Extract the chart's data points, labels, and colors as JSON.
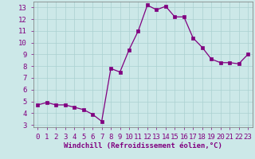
{
  "xlabel": "Windchill (Refroidissement éolien,°C)",
  "x_values": [
    0,
    1,
    2,
    3,
    4,
    5,
    6,
    7,
    8,
    9,
    10,
    11,
    12,
    13,
    14,
    15,
    16,
    17,
    18,
    19,
    20,
    21,
    22,
    23
  ],
  "y_values": [
    4.7,
    4.9,
    4.7,
    4.7,
    4.5,
    4.3,
    3.9,
    3.3,
    7.8,
    7.5,
    9.4,
    11.0,
    13.2,
    12.8,
    13.1,
    12.2,
    12.2,
    10.4,
    9.6,
    8.6,
    8.3,
    8.3,
    8.2,
    9.0
  ],
  "line_color": "#800080",
  "marker": "s",
  "marker_size": 2.5,
  "background_color": "#cce8e8",
  "grid_color": "#aad0d0",
  "ylim": [
    2.8,
    13.5
  ],
  "xlim": [
    -0.5,
    23.5
  ],
  "yticks": [
    3,
    4,
    5,
    6,
    7,
    8,
    9,
    10,
    11,
    12,
    13
  ],
  "xtick_labels": [
    "0",
    "1",
    "2",
    "3",
    "4",
    "5",
    "6",
    "7",
    "8",
    "9",
    "10",
    "11",
    "12",
    "13",
    "14",
    "15",
    "16",
    "17",
    "18",
    "19",
    "20",
    "21",
    "22",
    "23"
  ],
  "tick_color": "#800080",
  "tick_fontsize": 6.5,
  "xlabel_fontsize": 6.5,
  "xlabel_color": "#800080"
}
